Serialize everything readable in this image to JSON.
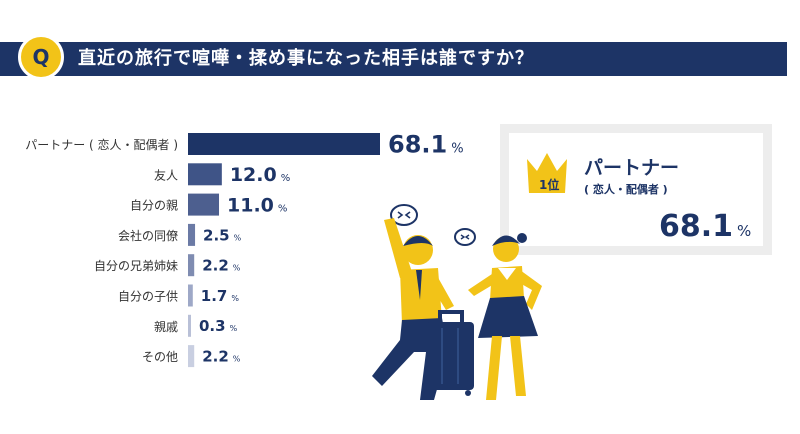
{
  "question": {
    "badge": "Q",
    "text": "直近の旅行で喧嘩・揉め事になった相手は誰ですか？"
  },
  "colors": {
    "navy": "#1d3466",
    "yellow": "#f2c318",
    "bar_shades": [
      "#1d3466",
      "#3f5487",
      "#4d5f8f",
      "#6b7aa5",
      "#7f8cb1",
      "#9ea8c7",
      "#b9c0d7",
      "#c9cfe1"
    ]
  },
  "chart_data": {
    "type": "bar",
    "orientation": "horizontal",
    "categories": [
      "パートナー ( 恋人・配偶者 )",
      "友人",
      "自分の親",
      "会社の同僚",
      "自分の兄弟姉妹",
      "自分の子供",
      "親戚",
      "その他"
    ],
    "values": [
      68.1,
      12.0,
      11.0,
      2.5,
      2.2,
      1.7,
      0.3,
      2.2
    ],
    "value_labels": [
      "68.1",
      "12.0",
      "11.0",
      "2.5",
      "2.2",
      "1.7",
      "0.3",
      "2.2"
    ],
    "unit": "%"
  },
  "top_card": {
    "rank_label": "1位",
    "name": "パートナー",
    "sub": "( 恋人・配偶者 )",
    "value": "68.1",
    "unit": "%"
  },
  "illustration": {
    "icon": "arguing-couple-with-suitcase"
  }
}
